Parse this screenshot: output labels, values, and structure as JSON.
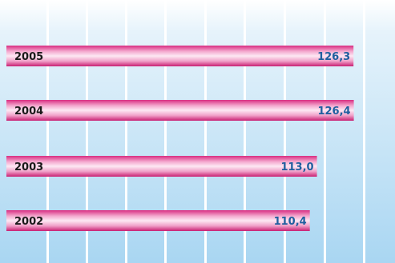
{
  "chart_data": {
    "type": "bar",
    "orientation": "horizontal",
    "categories": [
      "2005",
      "2004",
      "2003",
      "2002"
    ],
    "values": [
      126.3,
      126.4,
      113.0,
      110.4
    ],
    "value_labels": [
      "126,3",
      "126,4",
      "113,0",
      "110,4"
    ],
    "title": "",
    "xlabel": "",
    "ylabel": "",
    "grid": true
  },
  "colors": {
    "background_top": "#ffffff",
    "background_bottom": "#a9d6f2",
    "grid_line": "#ffffff",
    "bar_edge": "#d92e82",
    "bar_center": "#fde8f3",
    "value_text": "#1f5f9f",
    "category_text": "#1a1a1a"
  }
}
